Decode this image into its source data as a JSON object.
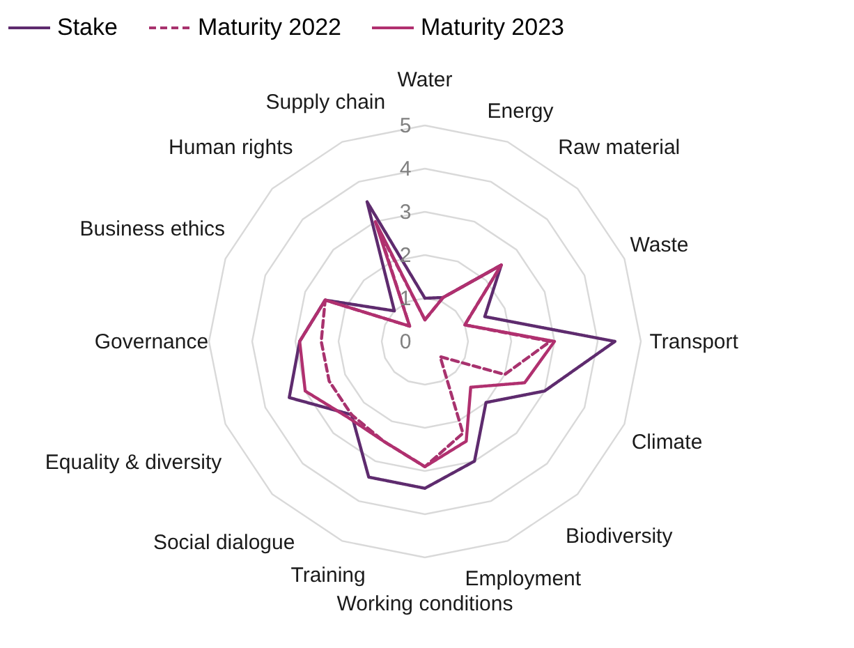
{
  "chart_data": {
    "type": "radar",
    "categories": [
      "Water",
      "Energy",
      "Raw material",
      "Waste",
      "Transport",
      "Climate",
      "Biodiversity",
      "Employment",
      "Working conditions",
      "Training",
      "Social dialogue",
      "Equality & diversity",
      "Governance",
      "Business ethics",
      "Human rights",
      "Supply chain"
    ],
    "series": [
      {
        "name": "Stake",
        "color": "#5e2b6e",
        "values": [
          1.0,
          1.1,
          2.5,
          1.5,
          4.4,
          3.0,
          2.0,
          3.0,
          3.4,
          3.4,
          2.4,
          3.4,
          2.9,
          2.5,
          1.0,
          3.5
        ]
      },
      {
        "name": "Maturity 2022",
        "color": "#a8326e",
        "line_style": "dashed",
        "values": [
          0.5,
          1.1,
          2.5,
          1.0,
          2.9,
          2.0,
          0.5,
          2.3,
          2.9,
          2.5,
          2.4,
          2.4,
          2.4,
          2.5,
          0.5,
          2.8
        ]
      },
      {
        "name": "Maturity 2023",
        "color": "#b0306f",
        "values": [
          0.5,
          1.1,
          2.5,
          1.0,
          3.0,
          2.5,
          1.5,
          2.5,
          2.9,
          2.5,
          2.5,
          3.0,
          2.9,
          2.5,
          0.5,
          3.0
        ]
      }
    ],
    "ylim": [
      0,
      5
    ],
    "yticks": [
      0,
      1,
      2,
      3,
      4,
      5
    ],
    "grid": true,
    "legend": "top"
  }
}
